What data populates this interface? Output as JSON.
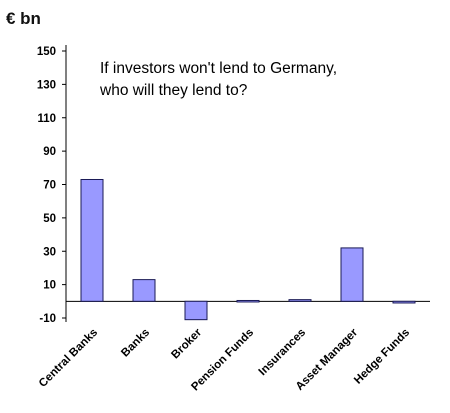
{
  "chart_data": {
    "type": "bar",
    "unit_label": "€ bn",
    "title_lines": [
      "If investors won't lend to Germany,",
      "who will they lend to?"
    ],
    "categories": [
      "Central Banks",
      "Banks",
      "Broker",
      "Pension Funds",
      "Insurances",
      "Asset Manager",
      "Hedge Funds"
    ],
    "values": [
      73,
      13,
      -11,
      0.5,
      1,
      32,
      -1
    ],
    "yticks": [
      -10,
      10,
      30,
      50,
      70,
      90,
      110,
      130,
      150
    ],
    "ylim": [
      -10,
      150
    ],
    "bar_fill": "#9999ff",
    "bar_stroke": "#1a1a55",
    "grid": false
  }
}
